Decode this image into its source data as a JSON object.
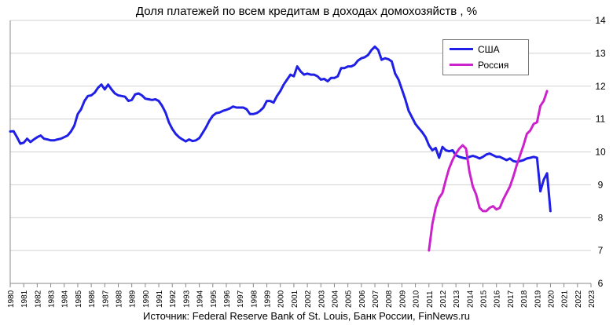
{
  "chart_data": {
    "type": "line",
    "title": "Доля платежей по всем кредитам в доходах домохозяйств , %",
    "source": "Источник: Federal Reserve Bank of St. Louis, Банк России, FinNews.ru",
    "xlabel": "",
    "ylabel": "",
    "xlim": [
      1980,
      2023
    ],
    "ylim": [
      6,
      14
    ],
    "y_ticks": [
      6,
      7,
      8,
      9,
      10,
      11,
      12,
      13,
      14
    ],
    "x_ticks": [
      "1980",
      "1981",
      "1982",
      "1983",
      "1984",
      "1985",
      "1986",
      "1987",
      "1988",
      "1989",
      "1990",
      "1991",
      "1992",
      "1993",
      "1994",
      "1995",
      "1996",
      "1997",
      "1998",
      "1999",
      "2000",
      "2001",
      "2002",
      "2003",
      "2004",
      "2005",
      "2006",
      "2007",
      "2008",
      "2009",
      "2010",
      "2011",
      "2012",
      "2013",
      "2014",
      "2015",
      "2016",
      "2017",
      "2018",
      "2019",
      "2020",
      "2021",
      "2022",
      "2023"
    ],
    "grid": true,
    "legend_position": "top-right",
    "series": [
      {
        "name": "США",
        "color": "#1f1fe6",
        "points": [
          [
            1980.0,
            10.62
          ],
          [
            1980.25,
            10.63
          ],
          [
            1980.5,
            10.45
          ],
          [
            1980.75,
            10.25
          ],
          [
            1981.0,
            10.28
          ],
          [
            1981.25,
            10.4
          ],
          [
            1981.5,
            10.3
          ],
          [
            1981.75,
            10.38
          ],
          [
            1982.0,
            10.45
          ],
          [
            1982.25,
            10.5
          ],
          [
            1982.5,
            10.4
          ],
          [
            1982.75,
            10.38
          ],
          [
            1983.0,
            10.35
          ],
          [
            1983.25,
            10.35
          ],
          [
            1983.5,
            10.38
          ],
          [
            1983.75,
            10.4
          ],
          [
            1984.0,
            10.45
          ],
          [
            1984.25,
            10.5
          ],
          [
            1984.5,
            10.62
          ],
          [
            1984.75,
            10.8
          ],
          [
            1985.0,
            11.15
          ],
          [
            1985.25,
            11.3
          ],
          [
            1985.5,
            11.55
          ],
          [
            1985.75,
            11.7
          ],
          [
            1986.0,
            11.72
          ],
          [
            1986.25,
            11.8
          ],
          [
            1986.5,
            11.95
          ],
          [
            1986.75,
            12.05
          ],
          [
            1987.0,
            11.9
          ],
          [
            1987.25,
            12.05
          ],
          [
            1987.5,
            11.9
          ],
          [
            1987.75,
            11.78
          ],
          [
            1988.0,
            11.72
          ],
          [
            1988.25,
            11.7
          ],
          [
            1988.5,
            11.68
          ],
          [
            1988.75,
            11.55
          ],
          [
            1989.0,
            11.58
          ],
          [
            1989.25,
            11.75
          ],
          [
            1989.5,
            11.78
          ],
          [
            1989.75,
            11.72
          ],
          [
            1990.0,
            11.62
          ],
          [
            1990.25,
            11.6
          ],
          [
            1990.5,
            11.58
          ],
          [
            1990.75,
            11.6
          ],
          [
            1991.0,
            11.55
          ],
          [
            1991.25,
            11.4
          ],
          [
            1991.5,
            11.2
          ],
          [
            1991.75,
            10.9
          ],
          [
            1992.0,
            10.7
          ],
          [
            1992.25,
            10.55
          ],
          [
            1992.5,
            10.45
          ],
          [
            1992.75,
            10.38
          ],
          [
            1993.0,
            10.32
          ],
          [
            1993.25,
            10.38
          ],
          [
            1993.5,
            10.33
          ],
          [
            1993.75,
            10.35
          ],
          [
            1994.0,
            10.42
          ],
          [
            1994.25,
            10.58
          ],
          [
            1994.5,
            10.75
          ],
          [
            1994.75,
            10.95
          ],
          [
            1995.0,
            11.1
          ],
          [
            1995.25,
            11.18
          ],
          [
            1995.5,
            11.2
          ],
          [
            1995.75,
            11.25
          ],
          [
            1996.0,
            11.28
          ],
          [
            1996.25,
            11.32
          ],
          [
            1996.5,
            11.38
          ],
          [
            1996.75,
            11.35
          ],
          [
            1997.0,
            11.35
          ],
          [
            1997.25,
            11.35
          ],
          [
            1997.5,
            11.3
          ],
          [
            1997.75,
            11.15
          ],
          [
            1998.0,
            11.15
          ],
          [
            1998.25,
            11.18
          ],
          [
            1998.5,
            11.25
          ],
          [
            1998.75,
            11.35
          ],
          [
            1999.0,
            11.55
          ],
          [
            1999.25,
            11.55
          ],
          [
            1999.5,
            11.5
          ],
          [
            1999.75,
            11.7
          ],
          [
            2000.0,
            11.85
          ],
          [
            2000.25,
            12.05
          ],
          [
            2000.5,
            12.2
          ],
          [
            2000.75,
            12.35
          ],
          [
            2001.0,
            12.3
          ],
          [
            2001.25,
            12.6
          ],
          [
            2001.5,
            12.45
          ],
          [
            2001.75,
            12.35
          ],
          [
            2002.0,
            12.38
          ],
          [
            2002.25,
            12.35
          ],
          [
            2002.5,
            12.35
          ],
          [
            2002.75,
            12.3
          ],
          [
            2003.0,
            12.2
          ],
          [
            2003.25,
            12.22
          ],
          [
            2003.5,
            12.15
          ],
          [
            2003.75,
            12.25
          ],
          [
            2004.0,
            12.25
          ],
          [
            2004.25,
            12.3
          ],
          [
            2004.5,
            12.55
          ],
          [
            2004.75,
            12.55
          ],
          [
            2005.0,
            12.6
          ],
          [
            2005.25,
            12.6
          ],
          [
            2005.5,
            12.65
          ],
          [
            2005.75,
            12.78
          ],
          [
            2006.0,
            12.85
          ],
          [
            2006.25,
            12.88
          ],
          [
            2006.5,
            12.95
          ],
          [
            2006.75,
            13.1
          ],
          [
            2007.0,
            13.2
          ],
          [
            2007.25,
            13.1
          ],
          [
            2007.5,
            12.8
          ],
          [
            2007.75,
            12.85
          ],
          [
            2008.0,
            12.82
          ],
          [
            2008.25,
            12.75
          ],
          [
            2008.5,
            12.38
          ],
          [
            2008.75,
            12.2
          ],
          [
            2009.0,
            11.9
          ],
          [
            2009.25,
            11.6
          ],
          [
            2009.5,
            11.25
          ],
          [
            2009.75,
            11.05
          ],
          [
            2010.0,
            10.85
          ],
          [
            2010.25,
            10.72
          ],
          [
            2010.5,
            10.6
          ],
          [
            2010.75,
            10.45
          ],
          [
            2011.0,
            10.2
          ],
          [
            2011.25,
            10.05
          ],
          [
            2011.5,
            10.12
          ],
          [
            2011.75,
            9.82
          ],
          [
            2012.0,
            10.15
          ],
          [
            2012.25,
            10.05
          ],
          [
            2012.5,
            10.02
          ],
          [
            2012.75,
            10.05
          ],
          [
            2013.0,
            9.9
          ],
          [
            2013.25,
            9.85
          ],
          [
            2013.5,
            9.82
          ],
          [
            2013.75,
            9.8
          ],
          [
            2014.0,
            9.85
          ],
          [
            2014.25,
            9.88
          ],
          [
            2014.5,
            9.85
          ],
          [
            2014.75,
            9.8
          ],
          [
            2015.0,
            9.85
          ],
          [
            2015.25,
            9.92
          ],
          [
            2015.5,
            9.95
          ],
          [
            2015.75,
            9.9
          ],
          [
            2016.0,
            9.85
          ],
          [
            2016.25,
            9.85
          ],
          [
            2016.5,
            9.8
          ],
          [
            2016.75,
            9.75
          ],
          [
            2017.0,
            9.8
          ],
          [
            2017.25,
            9.72
          ],
          [
            2017.5,
            9.7
          ],
          [
            2017.75,
            9.72
          ],
          [
            2018.0,
            9.75
          ],
          [
            2018.25,
            9.8
          ],
          [
            2018.5,
            9.82
          ],
          [
            2018.75,
            9.85
          ],
          [
            2019.0,
            9.82
          ],
          [
            2019.25,
            8.8
          ],
          [
            2019.5,
            9.15
          ],
          [
            2019.75,
            9.35
          ],
          [
            2020.0,
            8.2
          ]
        ]
      },
      {
        "name": "Россия",
        "color": "#cc22cc",
        "points": [
          [
            2011.0,
            7.0
          ],
          [
            2011.25,
            7.8
          ],
          [
            2011.5,
            8.3
          ],
          [
            2011.75,
            8.6
          ],
          [
            2012.0,
            8.75
          ],
          [
            2012.25,
            9.15
          ],
          [
            2012.5,
            9.5
          ],
          [
            2012.75,
            9.75
          ],
          [
            2013.0,
            9.95
          ],
          [
            2013.25,
            10.1
          ],
          [
            2013.5,
            10.2
          ],
          [
            2013.75,
            10.1
          ],
          [
            2014.0,
            9.4
          ],
          [
            2014.25,
            8.95
          ],
          [
            2014.5,
            8.7
          ],
          [
            2014.75,
            8.3
          ],
          [
            2015.0,
            8.2
          ],
          [
            2015.25,
            8.2
          ],
          [
            2015.5,
            8.3
          ],
          [
            2015.75,
            8.35
          ],
          [
            2016.0,
            8.25
          ],
          [
            2016.25,
            8.3
          ],
          [
            2016.5,
            8.55
          ],
          [
            2016.75,
            8.75
          ],
          [
            2017.0,
            8.95
          ],
          [
            2017.25,
            9.25
          ],
          [
            2017.5,
            9.6
          ],
          [
            2017.75,
            9.9
          ],
          [
            2018.0,
            10.2
          ],
          [
            2018.25,
            10.55
          ],
          [
            2018.5,
            10.65
          ],
          [
            2018.75,
            10.85
          ],
          [
            2019.0,
            10.9
          ],
          [
            2019.25,
            11.4
          ],
          [
            2019.5,
            11.55
          ],
          [
            2019.75,
            11.85
          ]
        ]
      }
    ]
  }
}
